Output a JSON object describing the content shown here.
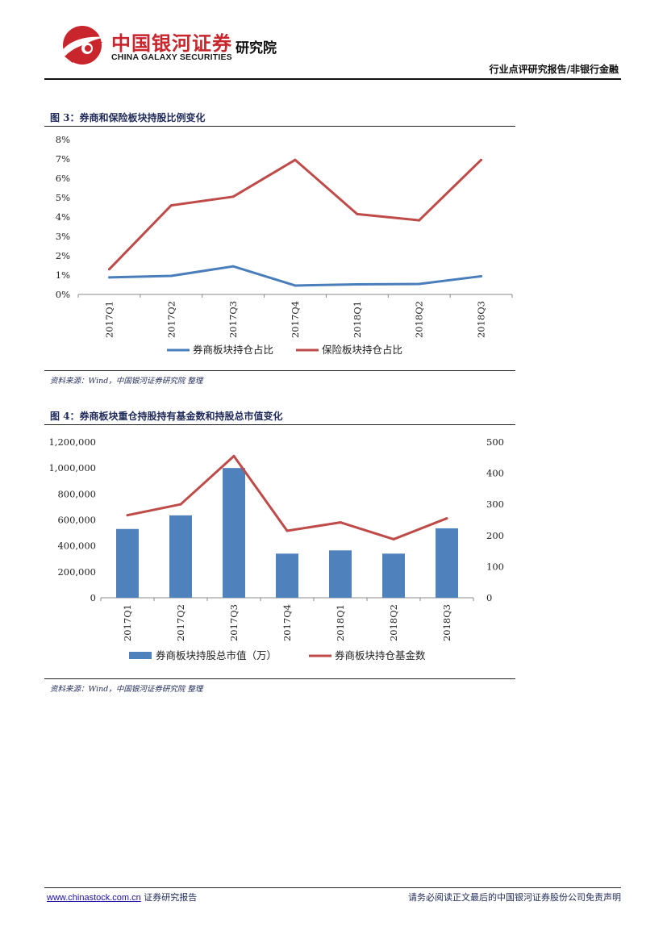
{
  "header": {
    "brand_cn": "中国银河证券",
    "brand_en": "CHINA GALAXY SECURITIES",
    "institute": "研究院",
    "report_type": "行业点评研究报告/非银行金融",
    "colors": {
      "brand_red": "#c8262c",
      "navy": "#1f2a5a"
    }
  },
  "figures": [
    {
      "title": "图 3：券商和保险板块持股比例变化",
      "source": "资料来源：Wind，中国银河证券研究院 整理"
    },
    {
      "title": "图 4：券商板块重仓持股持有基金数和持股总市值变化",
      "source": "资料来源：Wind，中国银河证券研究院 整理"
    }
  ],
  "chart_data": [
    {
      "type": "line",
      "categories": [
        "2017Q1",
        "2017Q2",
        "2017Q3",
        "2017Q4",
        "2018Q1",
        "2018Q2",
        "2018Q3"
      ],
      "y_ticks": [
        "0%",
        "1%",
        "2%",
        "3%",
        "4%",
        "5%",
        "6%",
        "7%",
        "8%"
      ],
      "ylim": [
        0,
        8
      ],
      "series": [
        {
          "name": "券商板块持仓占比",
          "color": "#4a7ebb",
          "values": [
            0.88,
            0.96,
            1.45,
            0.46,
            0.52,
            0.54,
            0.94
          ]
        },
        {
          "name": "保险板块持仓占比",
          "color": "#be4b48",
          "values": [
            1.3,
            4.6,
            5.05,
            6.95,
            4.15,
            3.83,
            6.95
          ]
        }
      ],
      "legend": "bottom",
      "grid": false
    },
    {
      "type": "bar+line",
      "categories": [
        "2017Q1",
        "2017Q2",
        "2017Q3",
        "2017Q4",
        "2018Q1",
        "2018Q2",
        "2018Q3"
      ],
      "y_left_ticks": [
        "0",
        "200,000",
        "400,000",
        "600,000",
        "800,000",
        "1,000,000",
        "1,200,000"
      ],
      "y_right_ticks": [
        "0",
        "100",
        "200",
        "300",
        "400",
        "500"
      ],
      "ylim_left": [
        0,
        1200000
      ],
      "ylim_right": [
        0,
        500
      ],
      "series": [
        {
          "name": "券商板块持股总市值（万）",
          "type": "bar",
          "axis": "left",
          "color": "#4f81bd",
          "values": [
            530000,
            635000,
            1000000,
            340000,
            365000,
            340000,
            535000
          ]
        },
        {
          "name": "券商板块持仓基金数",
          "type": "line",
          "axis": "right",
          "color": "#be4b48",
          "values": [
            265,
            300,
            455,
            215,
            242,
            188,
            255
          ]
        }
      ],
      "legend": "bottom",
      "grid": false
    }
  ],
  "footer": {
    "url": "www.chinastock.com.cn",
    "label": "证券研究报告",
    "disclaimer": "请务必阅读正文最后的中国银河证券股份公司免责声明"
  }
}
